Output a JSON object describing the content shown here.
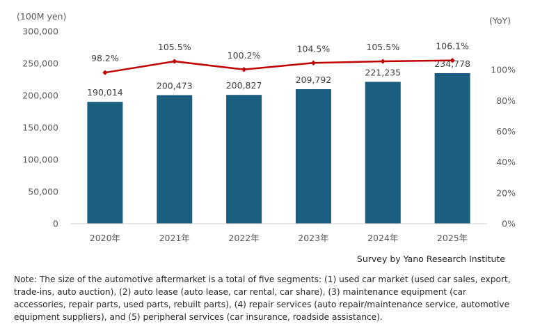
{
  "chart_data": {
    "type": "bar+line",
    "categories": [
      "2020年",
      "2021年",
      "2022年",
      "2023年",
      "2024年",
      "2025年"
    ],
    "series": [
      {
        "type": "bar",
        "values": [
          190014,
          200473,
          200827,
          209792,
          221235,
          234778
        ],
        "labels": [
          "190,014",
          "200,473",
          "200,827",
          "209,792",
          "221,235",
          "234,778"
        ],
        "color": "#1a5e80"
      },
      {
        "type": "line",
        "values": [
          98.2,
          105.5,
          100.2,
          104.5,
          105.5,
          106.1
        ],
        "labels": [
          "98.2%",
          "105.5%",
          "100.2%",
          "104.5%",
          "105.5%",
          "106.1%"
        ],
        "color": "#c00000"
      }
    ],
    "left_axis": {
      "unit": "(100M yen)",
      "ylim": [
        0,
        300000
      ],
      "ticks": [
        "0",
        "50,000",
        "100,000",
        "150,000",
        "200,000",
        "250,000",
        "300,000"
      ]
    },
    "right_axis": {
      "unit": "(YoY)",
      "ylim": [
        0,
        125
      ],
      "ticks": [
        "0%",
        "20%",
        "40%",
        "60%",
        "80%",
        "100%"
      ]
    },
    "grid": false
  },
  "source": "Survey by Yano Research Institute",
  "note": "Note: The size of the automotive aftermarket is a total of five segments: (1) used car market (used car sales, export, trade-ins, auto auction), (2) auto lease (auto lease, car rental, car share), (3) maintenance equipment (car accessories, repair parts, used parts, rebuilt parts), (4) repair services (auto repair/maintenance service, automotive equipment suppliers), and (5) peripheral services (car insurance, roadside assistance)."
}
